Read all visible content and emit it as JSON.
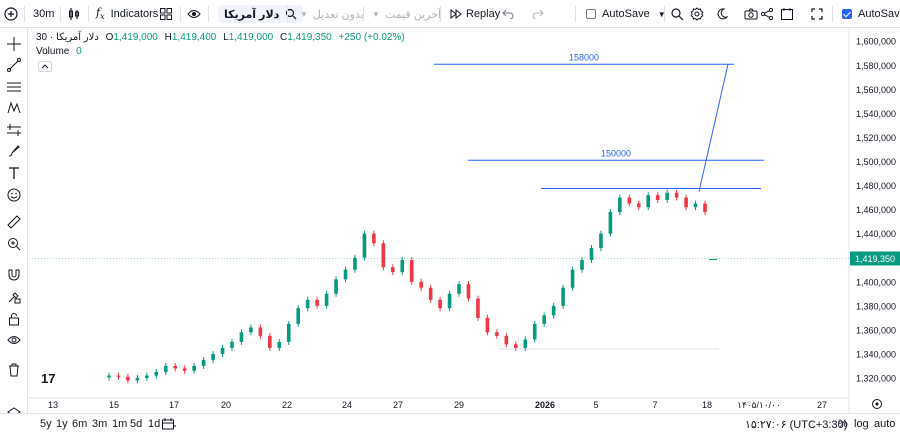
{
  "toolbar": {
    "interval": "30m",
    "indicators_label": "Indicators",
    "symbol_search": "دلار آمریکا",
    "undo_label": "بدون تعدیل",
    "last_price_label": "آخرین قیمت",
    "replay_label": "Replay",
    "autosave_label": "AutoSave",
    "autosave_right_label": "AutoSave"
  },
  "legend": {
    "symbol": "دلار آمریکا",
    "interval": "30",
    "open_k": "O",
    "open": "1,419,000",
    "high_k": "H",
    "high": "1,419,400",
    "low_k": "L",
    "low": "1,419,000",
    "close_k": "C",
    "close": "1,419,350",
    "change": "+250 (+0.02%)",
    "volume_label": "Volume",
    "volume_value": "0"
  },
  "chart_data": {
    "type": "candlestick",
    "y_ticks": [
      "1,600,000",
      "1,580,000",
      "1,560,000",
      "1,540,000",
      "1,520,000",
      "1,500,000",
      "1,480,000",
      "1,460,000",
      "1,440,000",
      "1,420,000",
      "1,400,000",
      "1,380,000",
      "1,360,000",
      "1,340,000",
      "1,320,000"
    ],
    "ylim": [
      1310000,
      1606000
    ],
    "current_price": "1,419,350",
    "current_price_value": 1419350,
    "x_ticks": [
      "13",
      "15",
      "17",
      "20",
      "22",
      "24",
      "27",
      "29",
      "2026",
      "5",
      "7",
      "18",
      "۱۴۰۵/۱۰/۰۰",
      "27"
    ],
    "annotations": [
      {
        "label": "158000",
        "price": 1580800
      },
      {
        "label": "150000",
        "price": 1501000
      },
      {
        "label": "",
        "price": 1477500
      }
    ],
    "series_close_path": [
      1322000,
      1321000,
      1318000,
      1320000,
      1322000,
      1325000,
      1330000,
      1328000,
      1326000,
      1330000,
      1335000,
      1340000,
      1345000,
      1350000,
      1358000,
      1362000,
      1355000,
      1345000,
      1350000,
      1365000,
      1378000,
      1385000,
      1380000,
      1390000,
      1402000,
      1410000,
      1420000,
      1440000,
      1432000,
      1412000,
      1408000,
      1418000,
      1400000,
      1395000,
      1385000,
      1378000,
      1390000,
      1398000,
      1386000,
      1370000,
      1358000,
      1355000,
      1348000,
      1345000,
      1352000,
      1365000,
      1372000,
      1380000,
      1395000,
      1410000,
      1418000,
      1428000,
      1440000,
      1458000,
      1470000,
      1465000,
      1462000,
      1472000,
      1468000,
      1474000,
      1470000,
      1462000,
      1465000,
      1458000
    ]
  },
  "bottom": {
    "ranges": [
      "5y",
      "1y",
      "6m",
      "3m",
      "1m",
      "5d",
      "1d"
    ],
    "clock": "۱۵:۲۷:۰۶ (UTC+3:30)",
    "pct": "%",
    "log": "log",
    "auto": "auto"
  }
}
